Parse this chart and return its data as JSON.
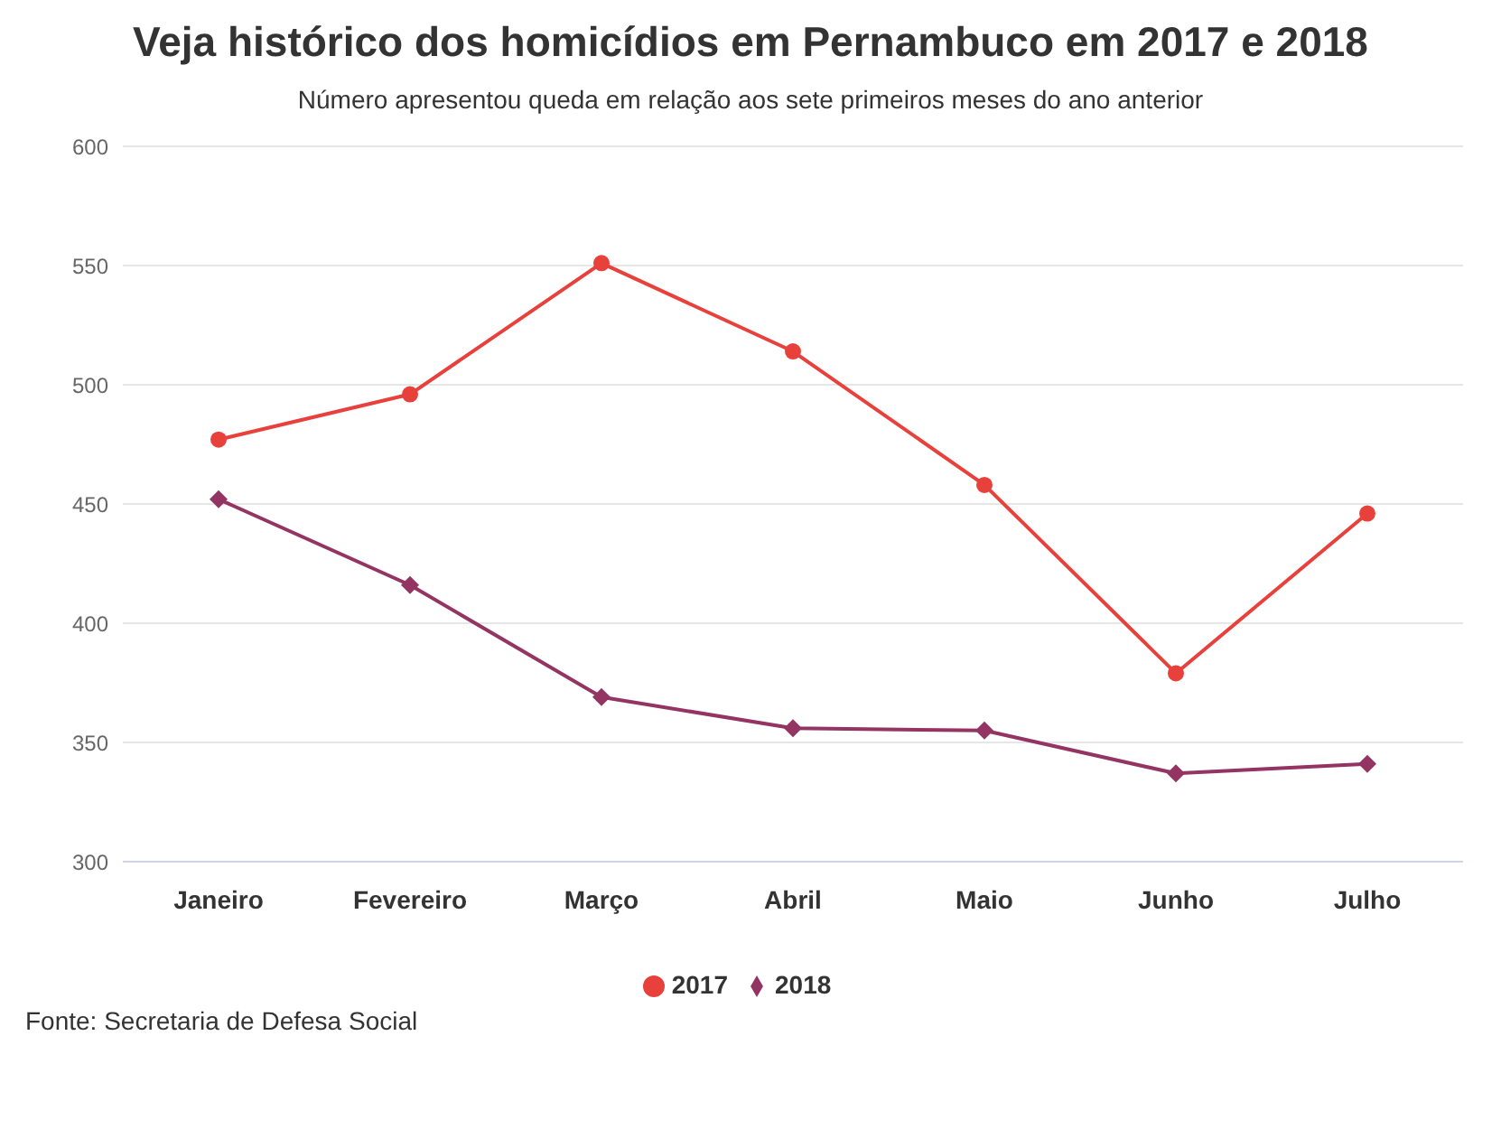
{
  "chart_data": {
    "type": "line",
    "title": "Veja histórico dos homicídios em Pernambuco em 2017 e 2018",
    "subtitle": "Número apresentou queda em relação aos sete primeiros meses do ano anterior",
    "categories": [
      "Janeiro",
      "Fevereiro",
      "Março",
      "Abril",
      "Maio",
      "Junho",
      "Julho"
    ],
    "series": [
      {
        "name": "2017",
        "color": "#e8413c",
        "marker": "circle",
        "values": [
          477,
          496,
          551,
          514,
          458,
          379,
          446
        ]
      },
      {
        "name": "2018",
        "color": "#933462",
        "marker": "diamond",
        "values": [
          452,
          416,
          369,
          356,
          355,
          337,
          341
        ]
      }
    ],
    "ylim": [
      300,
      600
    ],
    "yticks": [
      300,
      350,
      400,
      450,
      500,
      550,
      600
    ],
    "grid": "y",
    "legend": "bottom",
    "line_style": "solid",
    "annotations": [
      "Fonte: Secretaria de Defesa Social"
    ]
  }
}
